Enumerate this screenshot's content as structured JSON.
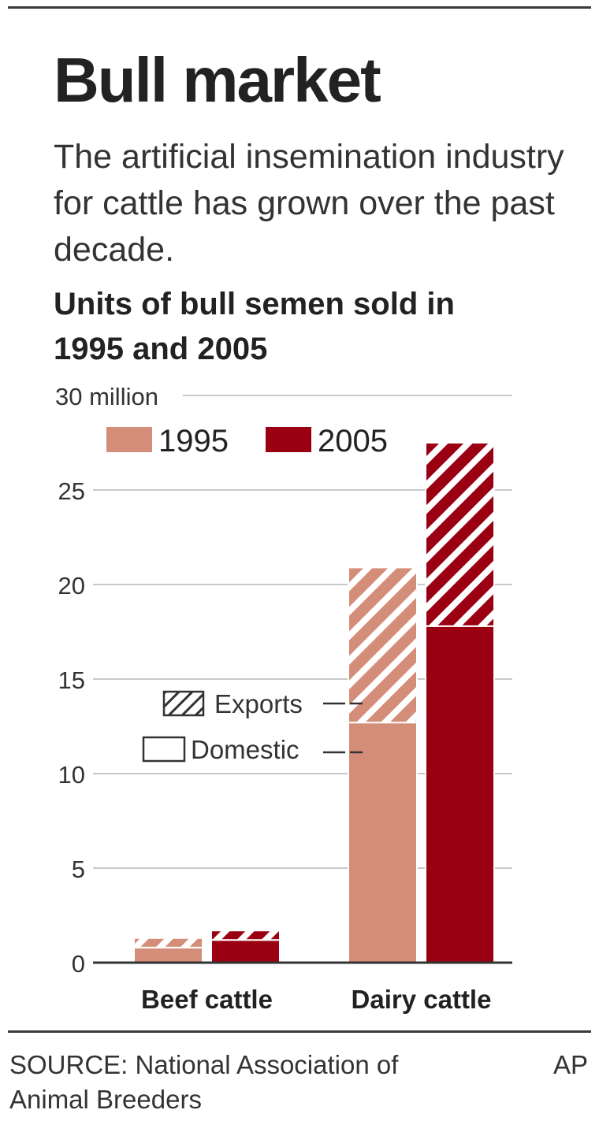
{
  "title": "Bull market",
  "subtitle": "The artificial insemination industry for cattle has grown over the past decade.",
  "chart_heading": "Units of bull semen sold in 1995 and 2005",
  "source": "SOURCE: National Association of Animal Breeders",
  "credit": "AP",
  "colors": {
    "y1995": "#d48d78",
    "y2005": "#9a0012",
    "grid": "#c8c8c8",
    "text": "#333333"
  },
  "chart_data": {
    "type": "bar",
    "stacked": true,
    "categories": [
      "Beef cattle",
      "Dairy cattle"
    ],
    "years": [
      "1995",
      "2005"
    ],
    "series": [
      {
        "name": "Domestic",
        "style": "solid",
        "values": {
          "1995": [
            0.8,
            12.7
          ],
          "2005": [
            1.2,
            17.8
          ]
        }
      },
      {
        "name": "Exports",
        "style": "hatched",
        "values": {
          "1995": [
            0.5,
            8.2
          ],
          "2005": [
            0.5,
            9.7
          ]
        }
      }
    ],
    "ylim": [
      0,
      30
    ],
    "yticks": [
      0,
      5,
      10,
      15,
      20,
      25,
      30
    ],
    "ytick_labels": [
      "0",
      "5",
      "10",
      "15",
      "20",
      "25",
      "30 million"
    ],
    "year_legend": [
      "1995",
      "2005"
    ],
    "type_legend": [
      "Exports",
      "Domestic"
    ],
    "grid": true
  }
}
